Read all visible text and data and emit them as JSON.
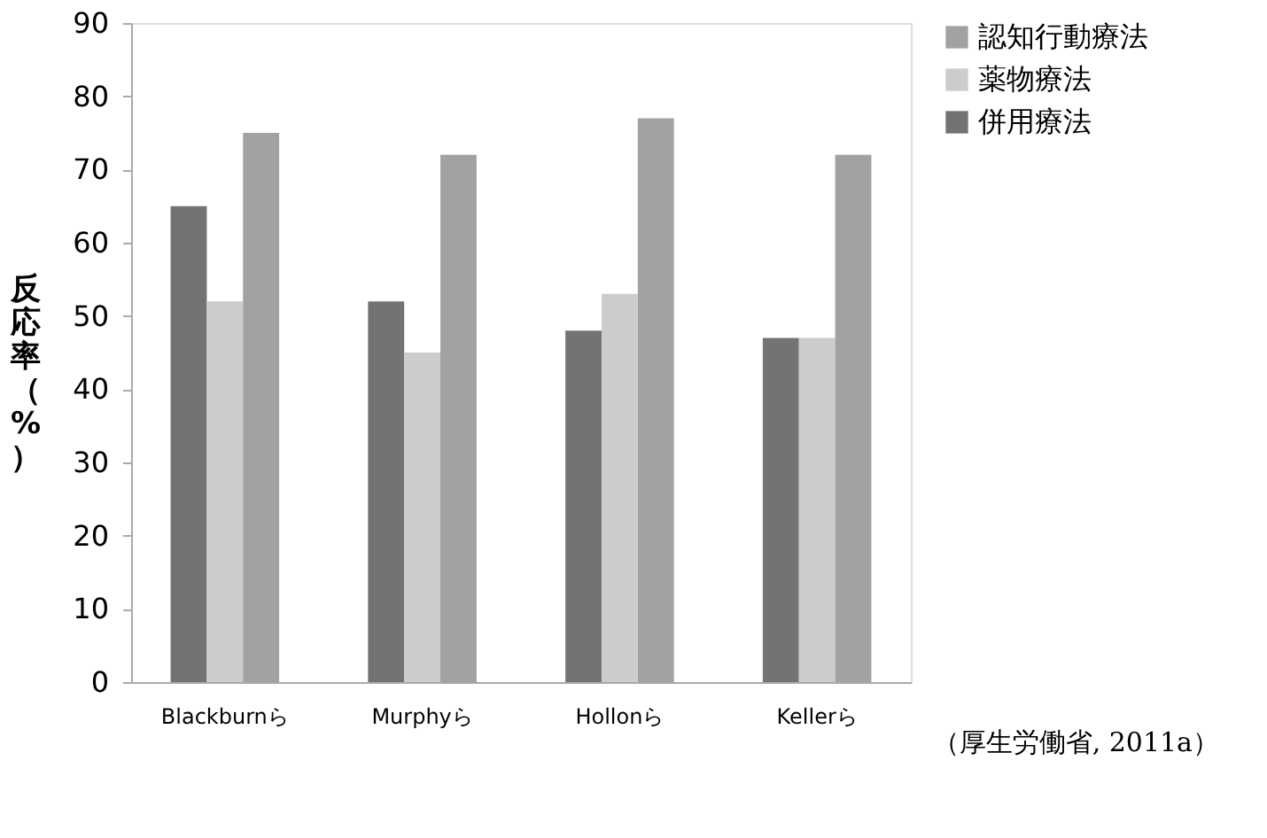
{
  "chart_data": {
    "type": "bar",
    "ylabel": "反応率（%）",
    "categories": [
      "Blackburnら",
      "Murphyら",
      "Hollonら",
      "Kellerら"
    ],
    "series": [
      {
        "name": "併用療法",
        "color": "#737373",
        "values": [
          65,
          52,
          48,
          47
        ]
      },
      {
        "name": "薬物療法",
        "color": "#cbcccb",
        "values": [
          52,
          45,
          53,
          47
        ]
      },
      {
        "name": "認知行動療法",
        "color": "#a2a2a2",
        "values": [
          75,
          72,
          77,
          72
        ]
      }
    ],
    "ylim": [
      0,
      90
    ],
    "yticks": [
      0,
      10,
      20,
      30,
      40,
      50,
      60,
      70,
      80,
      90
    ],
    "grid": false,
    "legend": "right",
    "annotations": [
      "（厚生労働省, 2011a）"
    ]
  }
}
